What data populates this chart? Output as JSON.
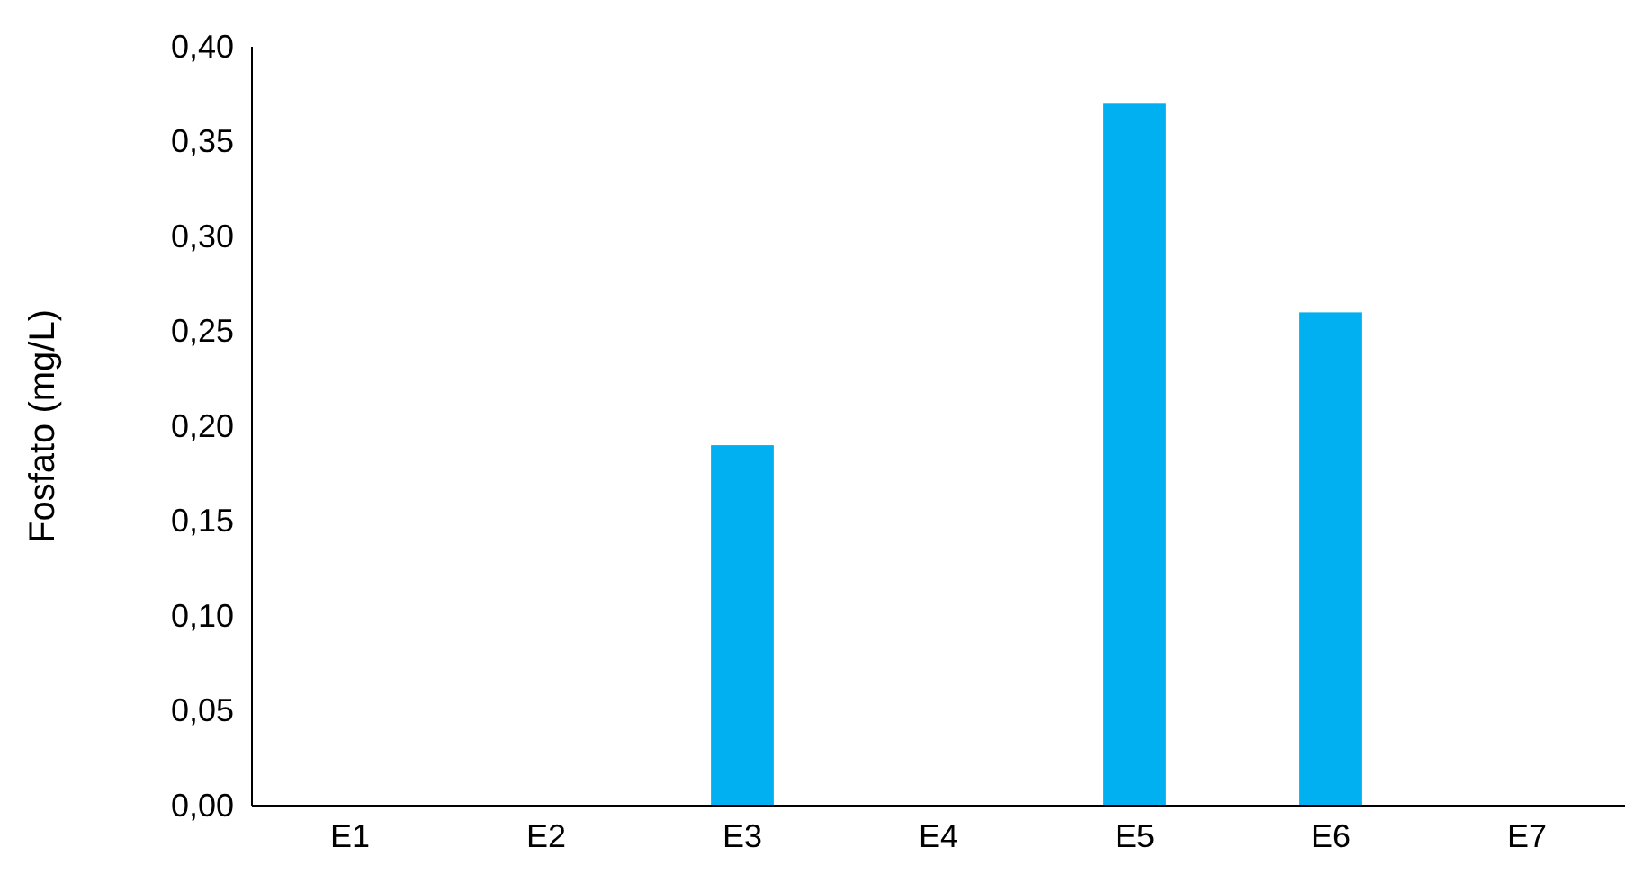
{
  "chart_data": {
    "type": "bar",
    "ylabel": "Fosfato (mg/L)",
    "categories": [
      "E1",
      "E2",
      "E3",
      "E4",
      "E5",
      "E6",
      "E7"
    ],
    "values": [
      0,
      0,
      0.19,
      0,
      0.37,
      0.26,
      0
    ],
    "color": "#00b0f0",
    "ylim": [
      0,
      0.4
    ],
    "yticks": [
      {
        "value": 0,
        "label": "0,00"
      },
      {
        "value": 0.05,
        "label": "0,05"
      },
      {
        "value": 0.1,
        "label": "0,10"
      },
      {
        "value": 0.15,
        "label": "0,15"
      },
      {
        "value": 0.2,
        "label": "0,20"
      },
      {
        "value": 0.25,
        "label": "0,25"
      },
      {
        "value": 0.3,
        "label": "0,30"
      },
      {
        "value": 0.35,
        "label": "0,35"
      },
      {
        "value": 0.4,
        "label": "0,40"
      }
    ],
    "grid": false
  }
}
